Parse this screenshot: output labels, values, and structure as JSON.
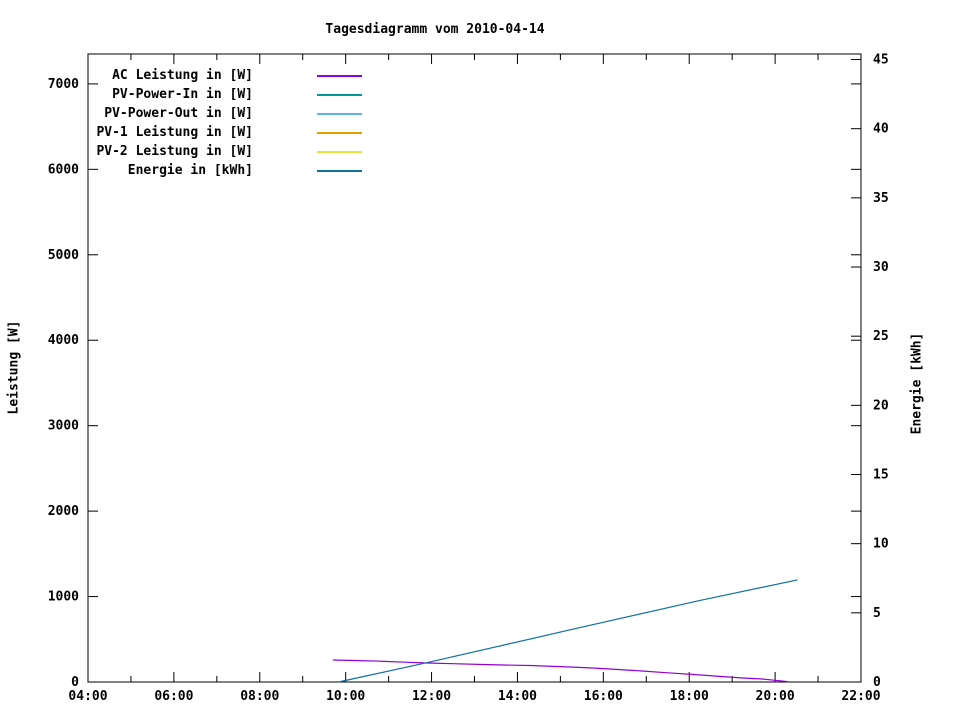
{
  "chart_data": {
    "type": "line",
    "title": "Tagesdiagramm vom 2010-04-14",
    "background_color": "#ffffff",
    "axis_color": "#000000",
    "grid": false,
    "legend_position": "top-left-inside",
    "x_axis": {
      "unit": "time",
      "start_hour": 4,
      "end_hour": 22,
      "major_tick_step_hours": 2,
      "minor_tick_step_hours": 1,
      "tick_labels": [
        "04:00",
        "06:00",
        "08:00",
        "10:00",
        "12:00",
        "14:00",
        "16:00",
        "18:00",
        "20:00",
        "22:00"
      ]
    },
    "y_left": {
      "label": "Leistung [W]",
      "min": 0,
      "max": 7350,
      "ticks": [
        0,
        1000,
        2000,
        3000,
        4000,
        5000,
        6000,
        7000
      ]
    },
    "y_right": {
      "label": "Energie [kWh]",
      "min": 0,
      "max": 45.4,
      "ticks": [
        0,
        5,
        10,
        15,
        20,
        25,
        30,
        35,
        40,
        45
      ]
    },
    "series": [
      {
        "name": "ac-leistung",
        "label": "AC Leistung in [W]",
        "color": "#9400d3",
        "axis": "left",
        "points": [
          [
            9.7,
            257
          ],
          [
            10.2,
            252
          ],
          [
            10.8,
            243
          ],
          [
            11.4,
            232
          ],
          [
            11.9,
            222
          ],
          [
            12.5,
            214
          ],
          [
            13.2,
            205
          ],
          [
            13.9,
            197
          ],
          [
            14.3,
            193
          ],
          [
            15.0,
            180
          ],
          [
            15.7,
            165
          ],
          [
            16.3,
            148
          ],
          [
            16.9,
            129
          ],
          [
            17.5,
            108
          ],
          [
            18.1,
            88
          ],
          [
            18.75,
            64
          ],
          [
            19.2,
            48
          ],
          [
            19.7,
            35
          ],
          [
            20.0,
            20
          ],
          [
            20.29,
            5
          ]
        ]
      },
      {
        "name": "pv-power-in",
        "label": "PV-Power-In in [W]",
        "color": "#009999",
        "axis": "left",
        "points": []
      },
      {
        "name": "pv-power-out",
        "label": "PV-Power-Out in [W]",
        "color": "#5cb8e6",
        "axis": "left",
        "points": []
      },
      {
        "name": "pv1-leistung",
        "label": "PV-1 Leistung in [W]",
        "color": "#e0a000",
        "axis": "left",
        "points": []
      },
      {
        "name": "pv2-leistung",
        "label": "PV-2 Leistung in [W]",
        "color": "#e8e33c",
        "axis": "left",
        "points": []
      },
      {
        "name": "energie",
        "label": "Energie in [kWh]",
        "color": "#1070a0",
        "axis": "right",
        "points": [
          [
            9.83,
            0
          ],
          [
            11.9,
            1.4
          ],
          [
            15.2,
            3.75
          ],
          [
            18.25,
            5.9
          ],
          [
            20.52,
            7.38
          ]
        ]
      }
    ]
  }
}
